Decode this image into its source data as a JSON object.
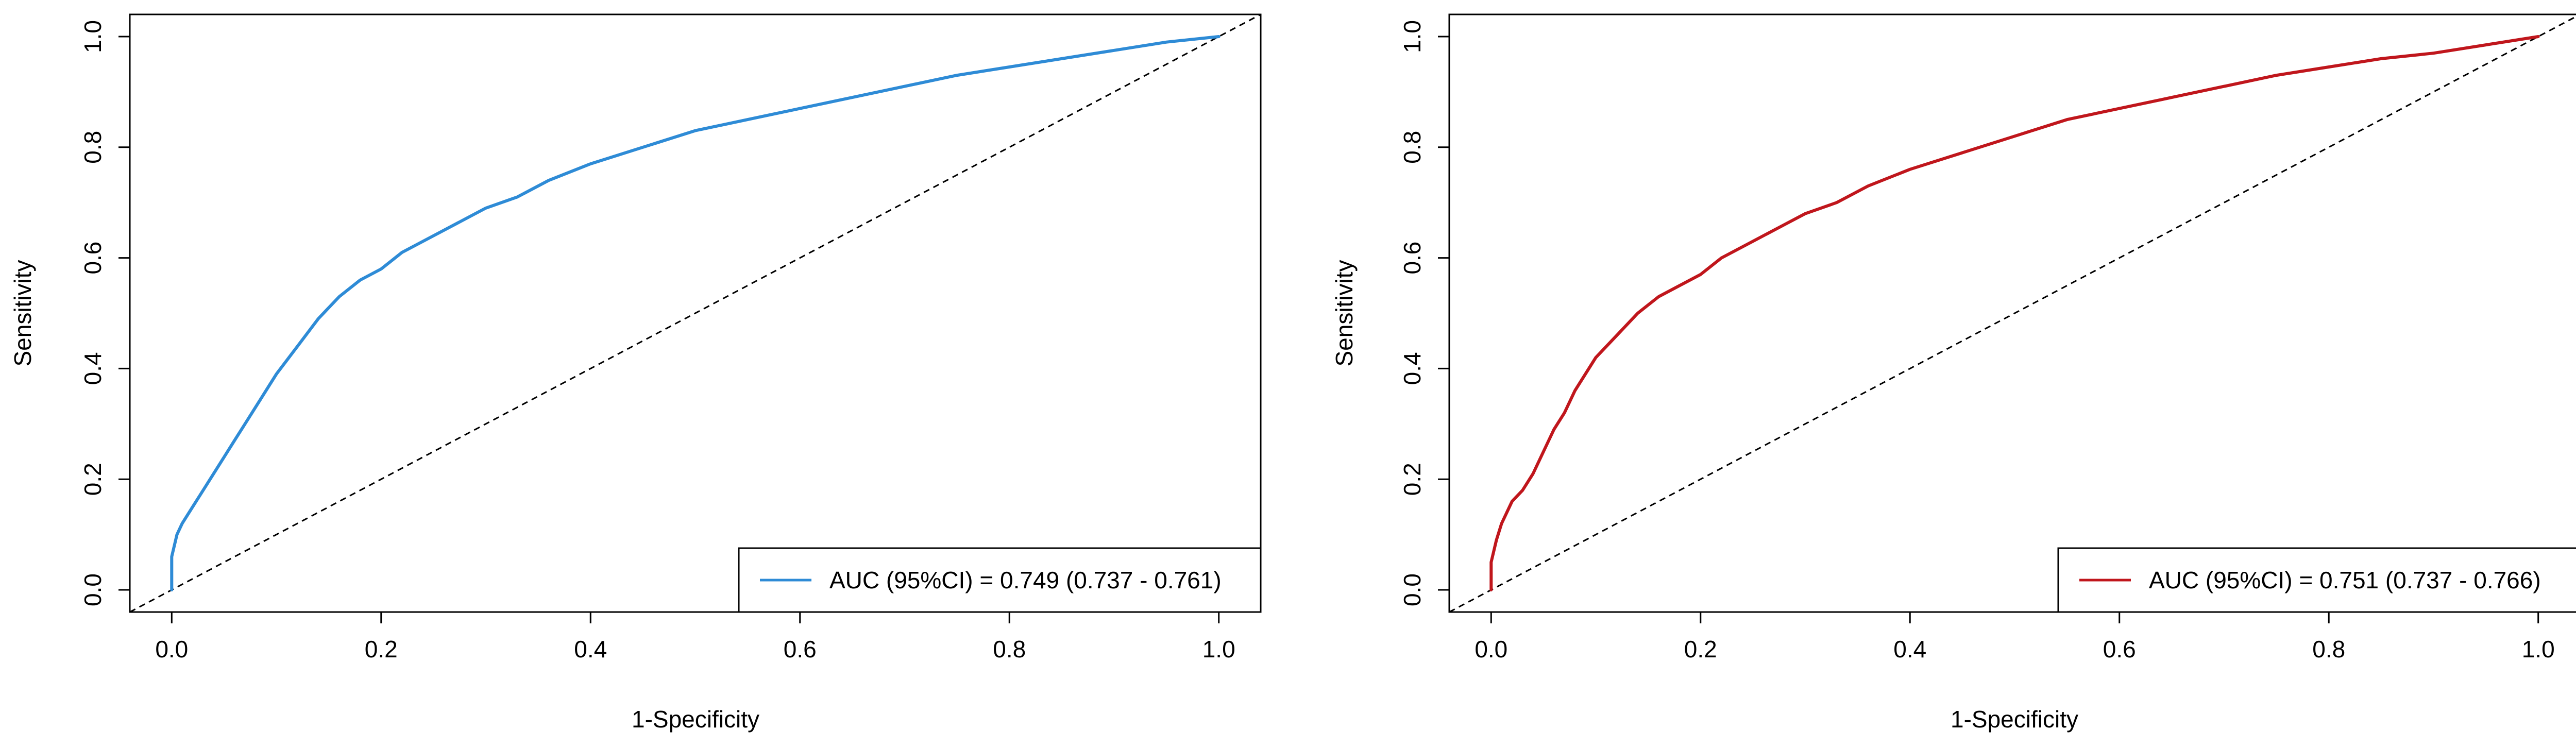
{
  "chart_data": [
    {
      "type": "line",
      "xlabel": "1-Specificity",
      "ylabel": "Sensitivity",
      "xlim": [
        -0.04,
        1.04
      ],
      "ylim": [
        -0.04,
        1.04
      ],
      "x_ticks": [
        "0.0",
        "0.2",
        "0.4",
        "0.6",
        "0.8",
        "1.0"
      ],
      "y_ticks": [
        "0.0",
        "0.2",
        "0.4",
        "0.6",
        "0.8",
        "1.0"
      ],
      "reference_line": {
        "x": [
          0,
          1
        ],
        "y": [
          0,
          1
        ],
        "style": "dashed",
        "color": "#000000"
      },
      "legend_position": "bottom-right",
      "series": [
        {
          "name": "AUC (95%CI) = 0.749 (0.737 - 0.761)",
          "color": "#2e8bd6",
          "x": [
            0.0,
            0.0,
            0.005,
            0.01,
            0.02,
            0.03,
            0.04,
            0.05,
            0.06,
            0.07,
            0.08,
            0.09,
            0.1,
            0.12,
            0.14,
            0.16,
            0.18,
            0.2,
            0.22,
            0.25,
            0.28,
            0.3,
            0.33,
            0.36,
            0.4,
            0.45,
            0.5,
            0.55,
            0.6,
            0.65,
            0.7,
            0.75,
            0.8,
            0.85,
            0.9,
            0.95,
            1.0
          ],
          "y": [
            0.0,
            0.06,
            0.1,
            0.12,
            0.15,
            0.18,
            0.21,
            0.24,
            0.27,
            0.3,
            0.33,
            0.36,
            0.39,
            0.44,
            0.49,
            0.53,
            0.56,
            0.58,
            0.61,
            0.64,
            0.67,
            0.69,
            0.71,
            0.74,
            0.77,
            0.8,
            0.83,
            0.85,
            0.87,
            0.89,
            0.91,
            0.93,
            0.945,
            0.96,
            0.975,
            0.99,
            1.0
          ]
        }
      ]
    },
    {
      "type": "line",
      "xlabel": "1-Specificity",
      "ylabel": "Sensitivity",
      "xlim": [
        -0.04,
        1.04
      ],
      "ylim": [
        -0.04,
        1.04
      ],
      "x_ticks": [
        "0.0",
        "0.2",
        "0.4",
        "0.6",
        "0.8",
        "1.0"
      ],
      "y_ticks": [
        "0.0",
        "0.2",
        "0.4",
        "0.6",
        "0.8",
        "1.0"
      ],
      "reference_line": {
        "x": [
          0,
          1
        ],
        "y": [
          0,
          1
        ],
        "style": "dashed",
        "color": "#000000"
      },
      "legend_position": "bottom-right",
      "series": [
        {
          "name": "AUC (95%CI) = 0.751 (0.737 - 0.766)",
          "color": "#c0161c",
          "x": [
            0.0,
            0.0,
            0.005,
            0.01,
            0.02,
            0.03,
            0.04,
            0.05,
            0.06,
            0.07,
            0.08,
            0.09,
            0.1,
            0.12,
            0.14,
            0.16,
            0.18,
            0.2,
            0.22,
            0.25,
            0.28,
            0.3,
            0.33,
            0.36,
            0.4,
            0.45,
            0.5,
            0.55,
            0.6,
            0.65,
            0.7,
            0.75,
            0.8,
            0.85,
            0.9,
            0.95,
            1.0
          ],
          "y": [
            0.0,
            0.05,
            0.09,
            0.12,
            0.16,
            0.18,
            0.21,
            0.25,
            0.29,
            0.32,
            0.36,
            0.39,
            0.42,
            0.46,
            0.5,
            0.53,
            0.55,
            0.57,
            0.6,
            0.63,
            0.66,
            0.68,
            0.7,
            0.73,
            0.76,
            0.79,
            0.82,
            0.85,
            0.87,
            0.89,
            0.91,
            0.93,
            0.945,
            0.96,
            0.97,
            0.985,
            1.0
          ]
        }
      ]
    }
  ]
}
